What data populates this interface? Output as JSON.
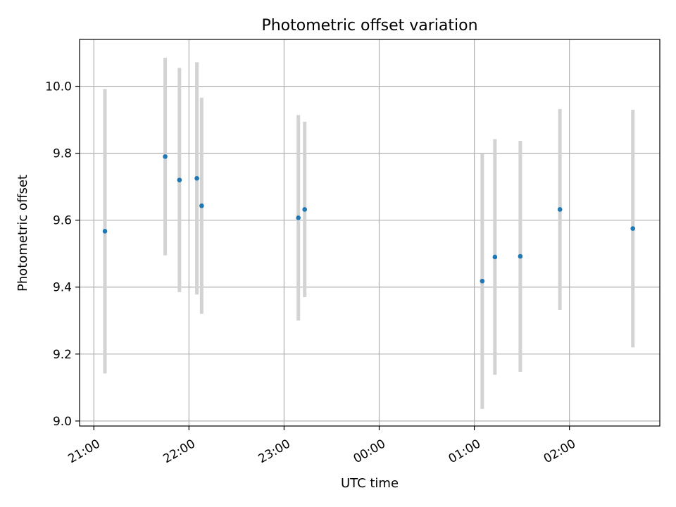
{
  "chart_data": {
    "type": "scatter",
    "title": "Photometric offset variation",
    "xlabel": "UTC time",
    "ylabel": "Photometric offset",
    "x_ticks": [
      "21:00",
      "22:00",
      "23:00",
      "00:00",
      "01:00",
      "02:00"
    ],
    "x_tick_hours": [
      21,
      22,
      23,
      24,
      25,
      26
    ],
    "y_ticks": [
      "9.0",
      "9.2",
      "9.4",
      "9.6",
      "9.8",
      "10.0"
    ],
    "xlim": [
      "20:51",
      "02:57"
    ],
    "ylim": [
      8.985,
      10.14
    ],
    "grid": true,
    "points": [
      {
        "time": "21:07",
        "y": 9.567,
        "yerr": 0.425
      },
      {
        "time": "21:45",
        "y": 9.79,
        "yerr": 0.295
      },
      {
        "time": "21:54",
        "y": 9.72,
        "yerr": 0.335
      },
      {
        "time": "22:05",
        "y": 9.725,
        "yerr": 0.347
      },
      {
        "time": "22:08",
        "y": 9.643,
        "yerr": 0.323
      },
      {
        "time": "23:09",
        "y": 9.607,
        "yerr": 0.307
      },
      {
        "time": "23:13",
        "y": 9.632,
        "yerr": 0.262
      },
      {
        "time": "01:05",
        "y": 9.418,
        "yerr": 0.382
      },
      {
        "time": "01:13",
        "y": 9.49,
        "yerr": 0.352
      },
      {
        "time": "01:29",
        "y": 9.492,
        "yerr": 0.345
      },
      {
        "time": "01:54",
        "y": 9.632,
        "yerr": 0.3
      },
      {
        "time": "02:40",
        "y": 9.575,
        "yerr": 0.355
      }
    ],
    "colors": {
      "point": "#1f77b4",
      "errorbar": "#d3d3d3",
      "grid": "#b0b0b0",
      "axis": "#000000"
    }
  }
}
